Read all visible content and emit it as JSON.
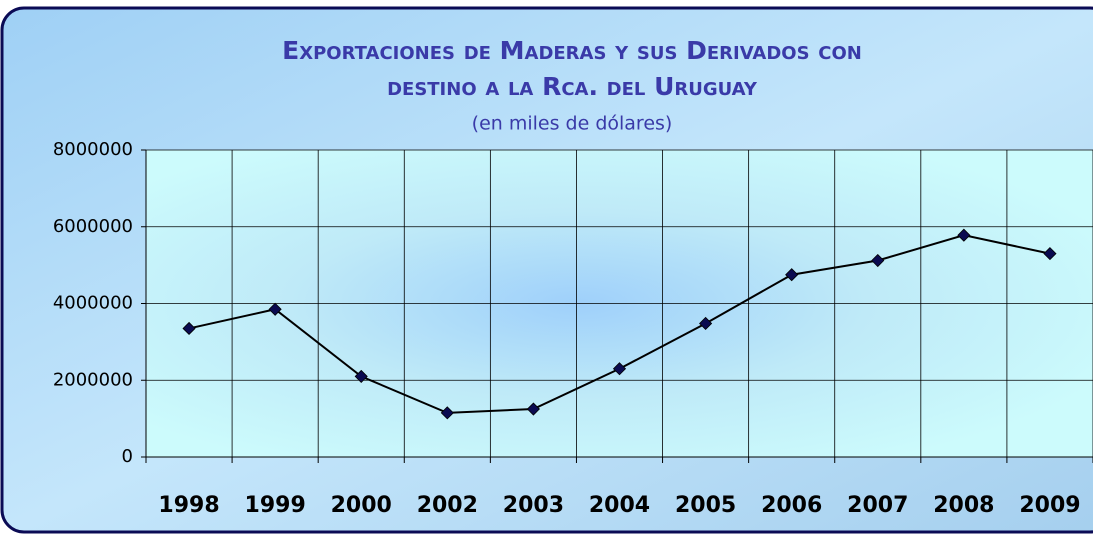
{
  "chart_data": {
    "type": "line",
    "title": [
      "Exportaciones de Maderas y sus Derivados con",
      "destino a la Rca. del Uruguay"
    ],
    "subtitle": "(en miles de dólares)",
    "categories": [
      "1998",
      "1999",
      "2000",
      "2002",
      "2003",
      "2004",
      "2005",
      "2006",
      "2007",
      "2008",
      "2009"
    ],
    "series": [
      {
        "color": "#000000",
        "marker_color": "#0a0a50",
        "values": [
          3350000,
          3850000,
          2100000,
          1150000,
          1250000,
          2300000,
          3480000,
          4750000,
          5120000,
          5780000,
          5300000
        ]
      }
    ],
    "ylim": [
      0,
      8000000
    ],
    "yticks": [
      0,
      2000000,
      4000000,
      6000000,
      8000000
    ],
    "grid": true
  }
}
